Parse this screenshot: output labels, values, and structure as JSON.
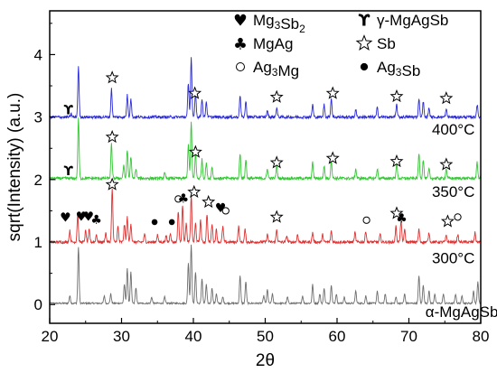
{
  "chart_data": {
    "type": "line",
    "title": "",
    "xlabel": "2θ",
    "ylabel": "sqrt(Intensity) (a.u.)",
    "xlim": [
      20,
      80
    ],
    "ylim": [
      -0.3,
      4.7
    ],
    "x_ticks": [
      20,
      30,
      40,
      50,
      60,
      70,
      80
    ],
    "y_ticks": [
      0,
      1,
      2,
      3,
      4
    ],
    "grid": false,
    "legend_position": "top-right",
    "legend": [
      {
        "symbol": "heart",
        "label": "Mg3Sb2",
        "glyph": "♥"
      },
      {
        "symbol": "gamma",
        "label": "γ-MgAgSb",
        "glyph": "ϒ"
      },
      {
        "symbol": "club",
        "label": "MgAg",
        "glyph": "♣"
      },
      {
        "symbol": "star",
        "label": "Sb",
        "glyph": "☆"
      },
      {
        "symbol": "circle",
        "label": "Ag3Mg",
        "glyph": "○"
      },
      {
        "symbol": "dot",
        "label": "Ag3Sb",
        "glyph": "●"
      }
    ],
    "series": [
      {
        "name": "α-MgAgSb",
        "color": "#6e6e6e",
        "baseline": 0.02,
        "peaks": [
          [
            22.8,
            0.12
          ],
          [
            24.0,
            0.9
          ],
          [
            27.6,
            0.12
          ],
          [
            28.5,
            0.15
          ],
          [
            30.4,
            0.3
          ],
          [
            30.8,
            0.55
          ],
          [
            31.3,
            0.5
          ],
          [
            32.0,
            0.25
          ],
          [
            34.2,
            0.1
          ],
          [
            36.0,
            0.1
          ],
          [
            39.3,
            0.65
          ],
          [
            39.7,
            0.95
          ],
          [
            40.3,
            0.5
          ],
          [
            41.2,
            0.4
          ],
          [
            41.8,
            0.3
          ],
          [
            42.6,
            0.25
          ],
          [
            43.2,
            0.15
          ],
          [
            44.1,
            0.1
          ],
          [
            46.5,
            0.45
          ],
          [
            47.3,
            0.35
          ],
          [
            49.8,
            0.12
          ],
          [
            50.3,
            0.22
          ],
          [
            51.0,
            0.15
          ],
          [
            53.1,
            0.1
          ],
          [
            55.2,
            0.12
          ],
          [
            56.6,
            0.3
          ],
          [
            57.6,
            0.15
          ],
          [
            58.2,
            0.25
          ],
          [
            59.2,
            0.3
          ],
          [
            59.9,
            0.15
          ],
          [
            61.0,
            0.1
          ],
          [
            62.6,
            0.2
          ],
          [
            64.0,
            0.12
          ],
          [
            65.6,
            0.2
          ],
          [
            66.7,
            0.15
          ],
          [
            68.2,
            0.1
          ],
          [
            69.4,
            0.15
          ],
          [
            71.4,
            0.45
          ],
          [
            72.0,
            0.3
          ],
          [
            72.8,
            0.2
          ],
          [
            73.6,
            0.15
          ],
          [
            74.8,
            0.15
          ],
          [
            76.5,
            0.15
          ],
          [
            77.4,
            0.12
          ],
          [
            79.0,
            0.2
          ],
          [
            79.6,
            0.35
          ]
        ]
      },
      {
        "name": "300°C",
        "color": "#e03030",
        "baseline": 1.0,
        "peaks": [
          [
            22.8,
            0.18
          ],
          [
            23.9,
            0.45
          ],
          [
            25.0,
            0.18
          ],
          [
            25.5,
            0.2
          ],
          [
            26.5,
            0.12
          ],
          [
            27.8,
            0.15
          ],
          [
            28.7,
            0.85
          ],
          [
            29.5,
            0.25
          ],
          [
            30.4,
            0.28
          ],
          [
            30.8,
            0.4
          ],
          [
            31.3,
            0.3
          ],
          [
            33.2,
            0.12
          ],
          [
            35.0,
            0.12
          ],
          [
            36.2,
            0.1
          ],
          [
            36.8,
            0.15
          ],
          [
            37.9,
            0.5
          ],
          [
            38.5,
            0.6
          ],
          [
            39.0,
            0.3
          ],
          [
            39.7,
            0.75
          ],
          [
            40.3,
            0.3
          ],
          [
            41.0,
            0.35
          ],
          [
            41.9,
            0.45
          ],
          [
            42.6,
            0.3
          ],
          [
            43.2,
            0.2
          ],
          [
            44.1,
            0.25
          ],
          [
            46.3,
            0.25
          ],
          [
            47.2,
            0.2
          ],
          [
            50.3,
            0.12
          ],
          [
            51.6,
            0.2
          ],
          [
            53.0,
            0.1
          ],
          [
            54.5,
            0.12
          ],
          [
            56.6,
            0.15
          ],
          [
            58.0,
            0.12
          ],
          [
            59.2,
            0.18
          ],
          [
            62.5,
            0.15
          ],
          [
            64.0,
            0.18
          ],
          [
            66.0,
            0.12
          ],
          [
            68.2,
            0.25
          ],
          [
            68.9,
            0.35
          ],
          [
            69.4,
            0.2
          ],
          [
            71.4,
            0.2
          ],
          [
            72.8,
            0.15
          ],
          [
            75.2,
            0.1
          ],
          [
            76.8,
            0.12
          ],
          [
            79.2,
            0.15
          ]
        ]
      },
      {
        "name": "350°C",
        "color": "#32c832",
        "baseline": 2.02,
        "peaks": [
          [
            24.0,
            0.95
          ],
          [
            28.6,
            0.55
          ],
          [
            30.3,
            0.2
          ],
          [
            30.8,
            0.45
          ],
          [
            31.3,
            0.35
          ],
          [
            32.0,
            0.15
          ],
          [
            36.0,
            0.08
          ],
          [
            39.3,
            0.55
          ],
          [
            39.7,
            0.9
          ],
          [
            40.3,
            0.4
          ],
          [
            41.2,
            0.3
          ],
          [
            41.8,
            0.25
          ],
          [
            42.6,
            0.18
          ],
          [
            46.5,
            0.4
          ],
          [
            47.3,
            0.3
          ],
          [
            50.3,
            0.15
          ],
          [
            51.6,
            0.2
          ],
          [
            56.6,
            0.25
          ],
          [
            58.2,
            0.2
          ],
          [
            59.2,
            0.3
          ],
          [
            62.6,
            0.15
          ],
          [
            65.6,
            0.15
          ],
          [
            68.3,
            0.25
          ],
          [
            71.4,
            0.4
          ],
          [
            72.0,
            0.3
          ],
          [
            72.8,
            0.15
          ],
          [
            75.2,
            0.15
          ],
          [
            79.5,
            0.25
          ]
        ]
      },
      {
        "name": "400°C",
        "color": "#2a2ad8",
        "baseline": 3.0,
        "peaks": [
          [
            23.0,
            0.05
          ],
          [
            24.0,
            0.8
          ],
          [
            28.6,
            0.45
          ],
          [
            30.8,
            0.35
          ],
          [
            31.3,
            0.3
          ],
          [
            39.3,
            0.55
          ],
          [
            39.7,
            0.95
          ],
          [
            40.3,
            0.4
          ],
          [
            41.2,
            0.3
          ],
          [
            41.8,
            0.25
          ],
          [
            46.5,
            0.35
          ],
          [
            47.3,
            0.25
          ],
          [
            50.3,
            0.1
          ],
          [
            51.6,
            0.15
          ],
          [
            56.6,
            0.2
          ],
          [
            58.2,
            0.2
          ],
          [
            59.2,
            0.3
          ],
          [
            62.6,
            0.12
          ],
          [
            65.6,
            0.15
          ],
          [
            68.3,
            0.2
          ],
          [
            71.4,
            0.3
          ],
          [
            72.0,
            0.25
          ],
          [
            72.8,
            0.15
          ],
          [
            75.2,
            0.12
          ],
          [
            79.5,
            0.2
          ]
        ]
      }
    ],
    "curve_labels": [
      {
        "text": "400°C",
        "x": 73.2,
        "y": 2.72
      },
      {
        "text": "350°C",
        "x": 73.2,
        "y": 1.72
      },
      {
        "text": "300°C",
        "x": 73.2,
        "y": 0.66
      },
      {
        "text": "α-MgAgSb",
        "x": 72.3,
        "y": -0.2
      }
    ],
    "markers": [
      {
        "symbol": "star",
        "x": 28.7,
        "y": 3.63
      },
      {
        "symbol": "star",
        "x": 40.2,
        "y": 3.38
      },
      {
        "symbol": "star",
        "x": 51.6,
        "y": 3.32
      },
      {
        "symbol": "star",
        "x": 59.4,
        "y": 3.38
      },
      {
        "symbol": "star",
        "x": 68.3,
        "y": 3.33
      },
      {
        "symbol": "star",
        "x": 75.2,
        "y": 3.3
      },
      {
        "symbol": "gamma",
        "x": 22.6,
        "y": 3.12
      },
      {
        "symbol": "star",
        "x": 28.7,
        "y": 2.68
      },
      {
        "symbol": "star",
        "x": 40.3,
        "y": 2.44
      },
      {
        "symbol": "star",
        "x": 51.6,
        "y": 2.27
      },
      {
        "symbol": "star",
        "x": 59.4,
        "y": 2.34
      },
      {
        "symbol": "star",
        "x": 68.3,
        "y": 2.29
      },
      {
        "symbol": "star",
        "x": 75.2,
        "y": 2.24
      },
      {
        "symbol": "gamma",
        "x": 22.6,
        "y": 2.14
      },
      {
        "symbol": "heart",
        "x": 22.2,
        "y": 1.4
      },
      {
        "symbol": "heart",
        "x": 24.4,
        "y": 1.41
      },
      {
        "symbol": "heart",
        "x": 25.4,
        "y": 1.41
      },
      {
        "symbol": "club",
        "x": 26.5,
        "y": 1.36
      },
      {
        "symbol": "star",
        "x": 28.7,
        "y": 1.92
      },
      {
        "symbol": "dot",
        "x": 34.6,
        "y": 1.32
      },
      {
        "symbol": "dot",
        "x": 37.0,
        "y": 1.32
      },
      {
        "symbol": "circle",
        "x": 37.9,
        "y": 1.69
      },
      {
        "symbol": "club",
        "x": 38.6,
        "y": 1.7
      },
      {
        "symbol": "star",
        "x": 40.1,
        "y": 1.8
      },
      {
        "symbol": "star",
        "x": 42.1,
        "y": 1.64
      },
      {
        "symbol": "heart",
        "x": 43.8,
        "y": 1.55
      },
      {
        "symbol": "circle",
        "x": 44.5,
        "y": 1.5
      },
      {
        "symbol": "star",
        "x": 51.6,
        "y": 1.4
      },
      {
        "symbol": "circle",
        "x": 64.1,
        "y": 1.35
      },
      {
        "symbol": "star",
        "x": 68.3,
        "y": 1.46
      },
      {
        "symbol": "club",
        "x": 69.0,
        "y": 1.38
      },
      {
        "symbol": "star",
        "x": 75.4,
        "y": 1.33
      },
      {
        "symbol": "circle",
        "x": 76.8,
        "y": 1.4
      }
    ]
  }
}
